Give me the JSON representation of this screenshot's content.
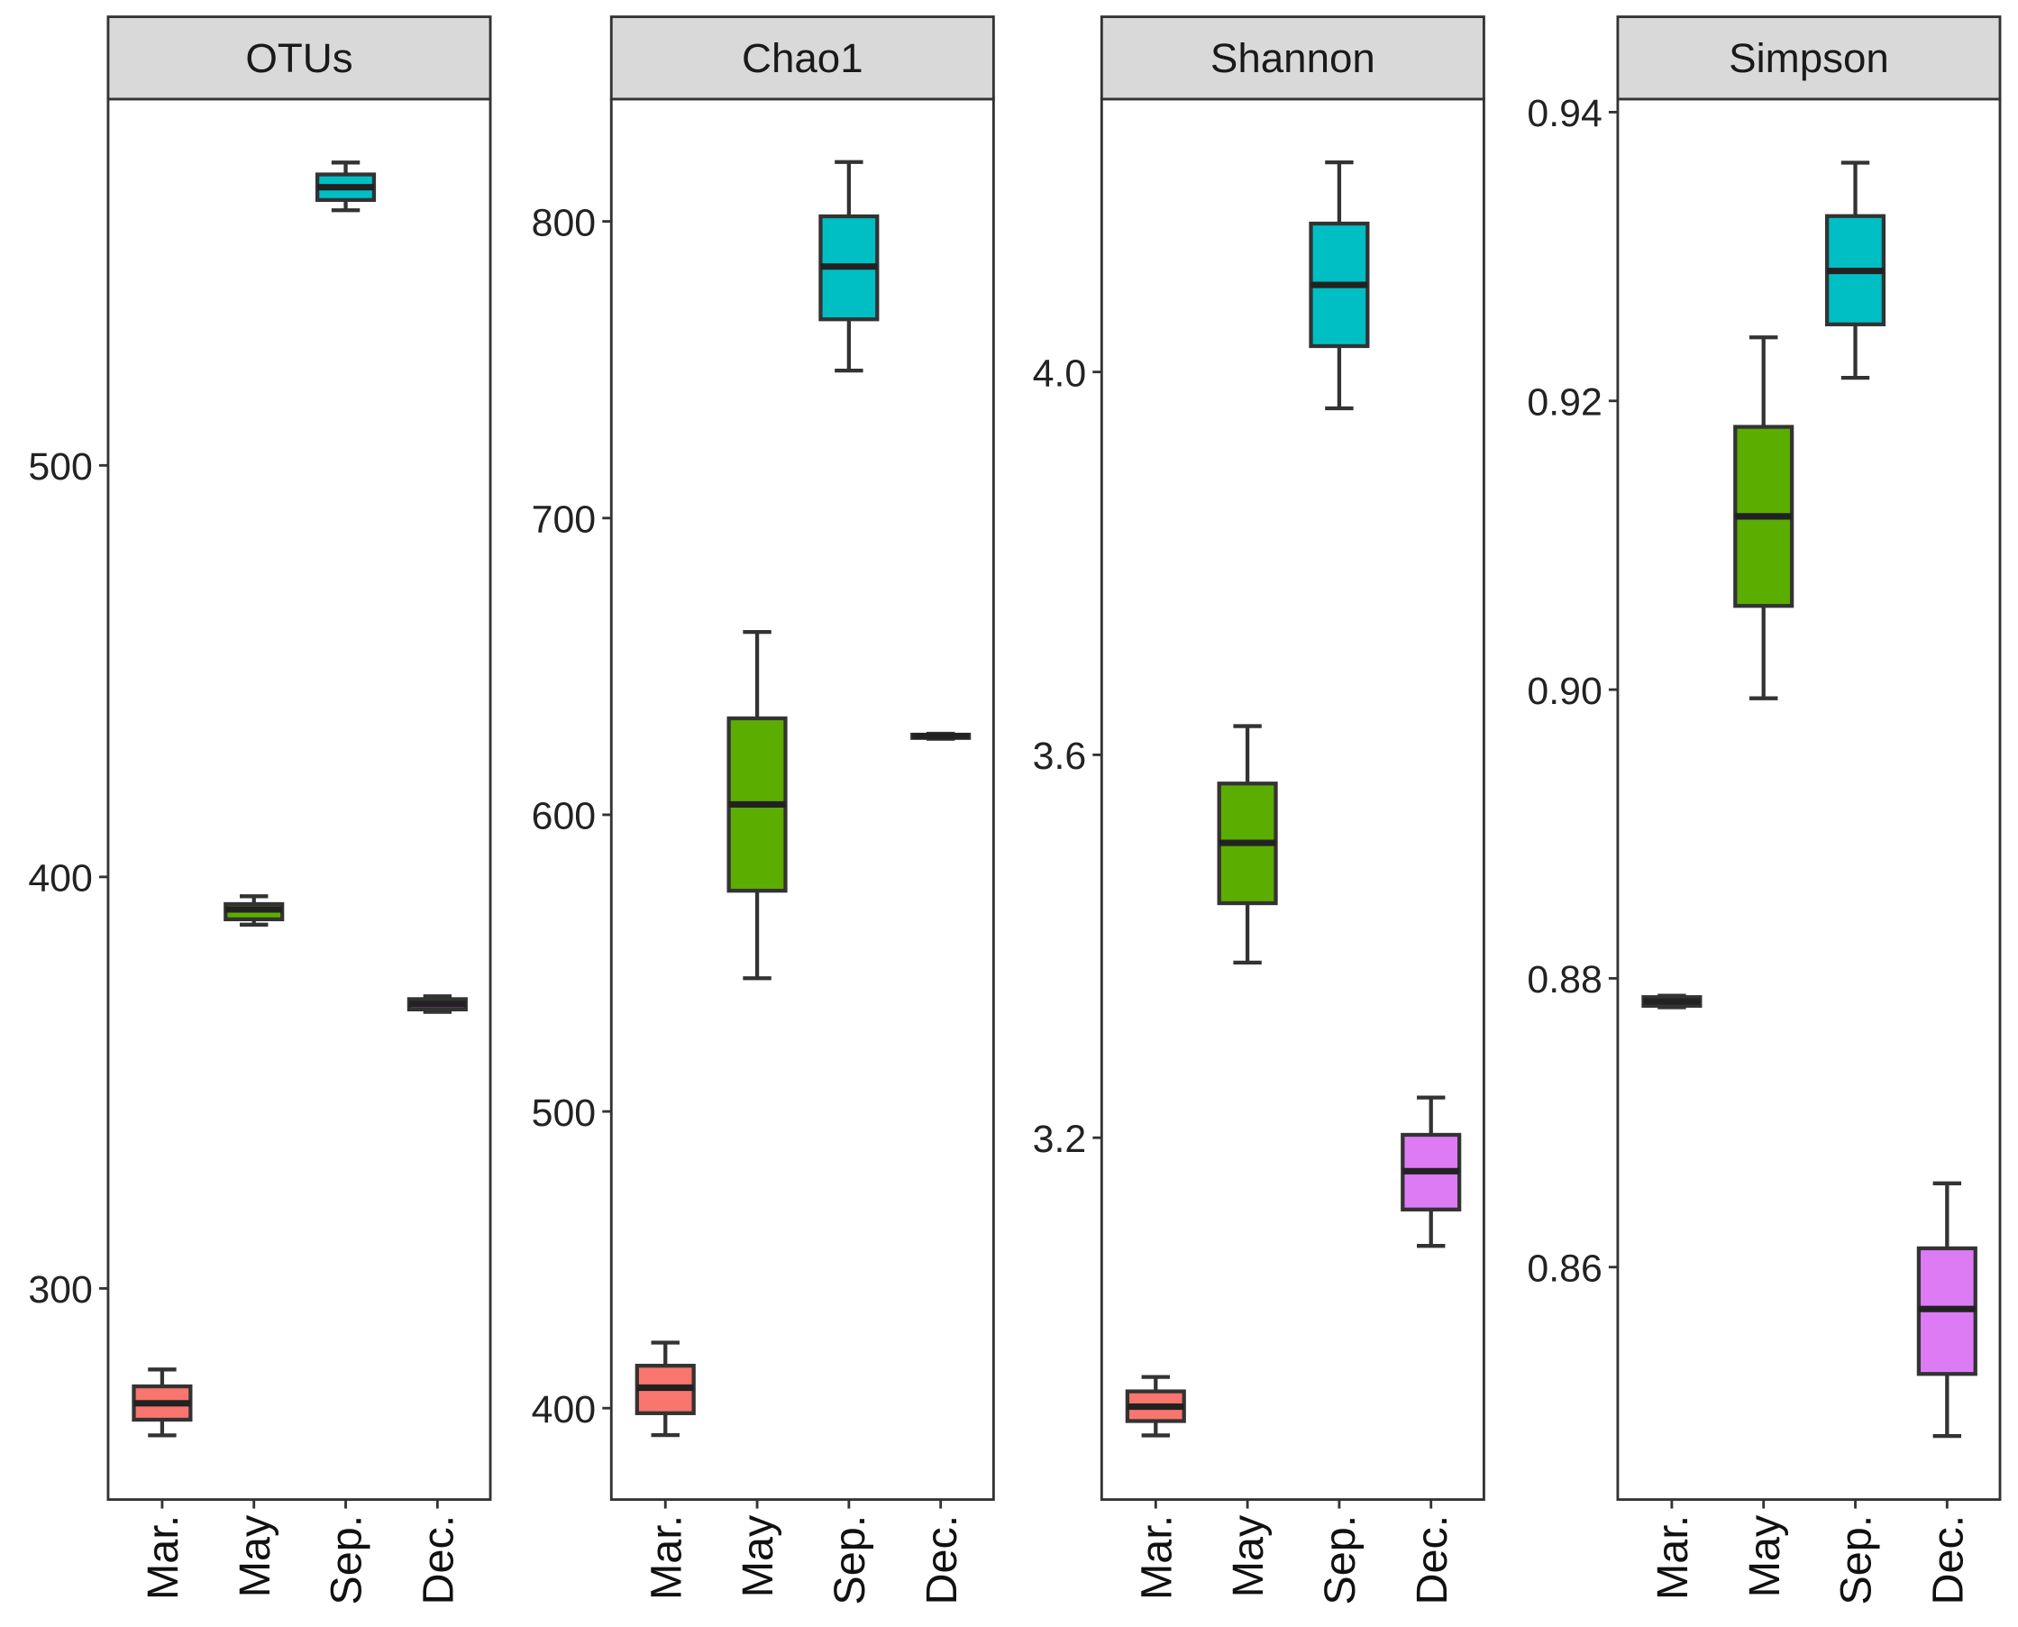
{
  "chart_data": [
    {
      "type": "box",
      "title": "OTUs",
      "categories": [
        "Mar.",
        "May",
        "Sep.",
        "Dec."
      ],
      "ylim": [
        248.7,
        589
      ],
      "yticks": [
        300,
        400,
        500
      ],
      "ytick_labels": [
        "300",
        "400",
        "500"
      ],
      "boxes": [
        {
          "min": 264.3,
          "q1": 268.1,
          "median": 272.1,
          "q3": 276.2,
          "max": 280.3
        },
        {
          "min": 388.4,
          "q1": 389.7,
          "median": 392.1,
          "q3": 393.4,
          "max": 395.3
        },
        {
          "min": 562.0,
          "q1": 564.5,
          "median": 567.6,
          "q3": 570.7,
          "max": 573.6
        },
        {
          "min": 367.2,
          "q1": 367.8,
          "median": 369.1,
          "q3": 370.3,
          "max": 371.0
        }
      ]
    },
    {
      "type": "box",
      "title": "Chao1",
      "categories": [
        "Mar.",
        "May",
        "Sep.",
        "Dec."
      ],
      "ylim": [
        369.2,
        841.2
      ],
      "yticks": [
        400,
        500,
        600,
        700,
        800
      ],
      "ytick_labels": [
        "400",
        "500",
        "600",
        "700",
        "800"
      ],
      "boxes": [
        {
          "min": 390.9,
          "q1": 398.3,
          "median": 406.9,
          "q3": 414.3,
          "max": 422.1
        },
        {
          "min": 544.9,
          "q1": 574.4,
          "median": 603.5,
          "q3": 632.5,
          "max": 661.6
        },
        {
          "min": 749.7,
          "q1": 767.0,
          "median": 784.8,
          "q3": 801.7,
          "max": 820.0
        },
        {
          "min": 625.6,
          "q1": 625.9,
          "median": 626.5,
          "q3": 627.0,
          "max": 627.3
        }
      ]
    },
    {
      "type": "box",
      "title": "Shannon",
      "categories": [
        "Mar.",
        "May",
        "Sep.",
        "Dec."
      ],
      "ylim": [
        2.822,
        4.285
      ],
      "yticks": [
        3.2,
        3.6,
        4.0
      ],
      "ytick_labels": [
        "3.2",
        "3.6",
        "4.0"
      ],
      "boxes": [
        {
          "min": 2.889,
          "q1": 2.904,
          "median": 2.919,
          "q3": 2.935,
          "max": 2.95
        },
        {
          "min": 3.383,
          "q1": 3.445,
          "median": 3.508,
          "q3": 3.57,
          "max": 3.63
        },
        {
          "min": 3.962,
          "q1": 4.027,
          "median": 4.091,
          "q3": 4.155,
          "max": 4.219
        },
        {
          "min": 3.087,
          "q1": 3.125,
          "median": 3.165,
          "q3": 3.203,
          "max": 3.242
        }
      ]
    },
    {
      "type": "box",
      "title": "Simpson",
      "categories": [
        "Mar.",
        "May",
        "Sep.",
        "Dec."
      ],
      "ylim": [
        0.8439,
        0.9409
      ],
      "yticks": [
        0.86,
        0.88,
        0.9,
        0.92,
        0.94
      ],
      "ytick_labels": [
        "0.86",
        "0.88",
        "0.90",
        "0.92",
        "0.94"
      ],
      "boxes": [
        {
          "min": 0.878,
          "q1": 0.8781,
          "median": 0.8784,
          "q3": 0.8787,
          "max": 0.8788
        },
        {
          "min": 0.8994,
          "q1": 0.9058,
          "median": 0.912,
          "q3": 0.9182,
          "max": 0.9244
        },
        {
          "min": 0.9216,
          "q1": 0.9253,
          "median": 0.929,
          "q3": 0.9328,
          "max": 0.9365
        },
        {
          "min": 0.8483,
          "q1": 0.8526,
          "median": 0.8571,
          "q3": 0.8613,
          "max": 0.8658
        }
      ]
    }
  ],
  "colors": {
    "Mar.": "#F8766D",
    "May": "#5BAD00",
    "Sep.": "#00BFC4",
    "Dec.": "#DD7BF5",
    "strip": "#D9D9D9",
    "outline": "#333333"
  }
}
